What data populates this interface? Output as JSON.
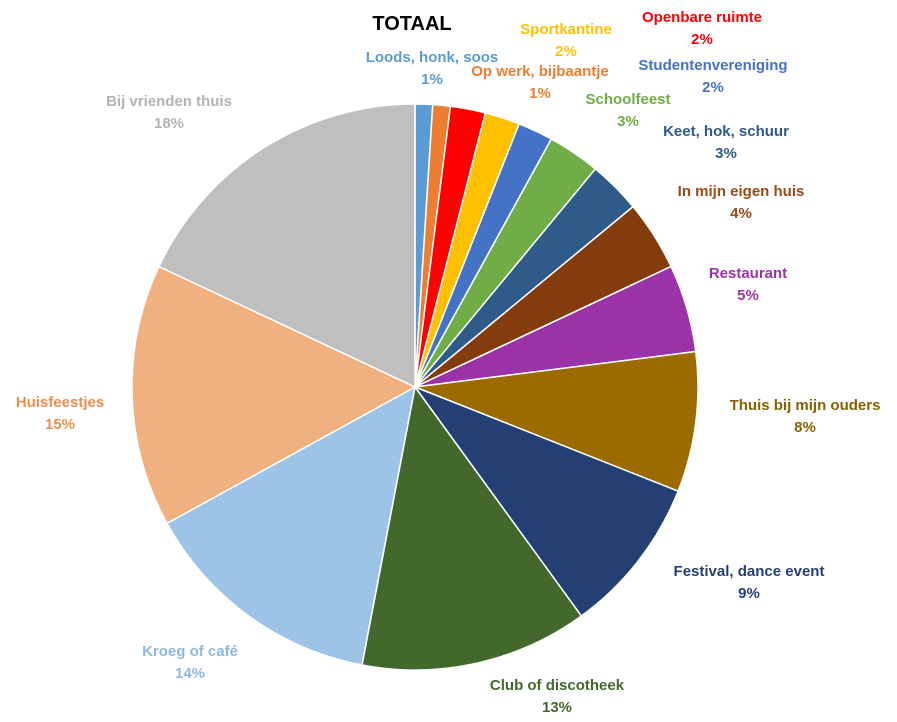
{
  "chart_data": {
    "type": "pie",
    "title": "TOTAAL",
    "start_angle_deg": 0,
    "direction": "clockwise",
    "legend": "none",
    "slices": [
      {
        "label": "Loods, honk, soos",
        "value": 1,
        "value_label": "1%",
        "color": "#5b9bd5",
        "label_color": "#5b9bd5"
      },
      {
        "label": "Op werk, bijbaantje",
        "value": 1,
        "value_label": "1%",
        "color": "#ed7d31",
        "label_color": "#ed7d31"
      },
      {
        "label": "Openbare ruimte",
        "value": 2,
        "value_label": "2%",
        "color": "#ff0000",
        "label_color": "#ff0000"
      },
      {
        "label": "Sportkantine",
        "value": 2,
        "value_label": "2%",
        "color": "#ffc000",
        "label_color": "#ffc000"
      },
      {
        "label": "Studentenvereniging",
        "value": 2,
        "value_label": "2%",
        "color": "#4472c4",
        "label_color": "#4472c4"
      },
      {
        "label": "Schoolfeest",
        "value": 3,
        "value_label": "3%",
        "color": "#70ad47",
        "label_color": "#70ad47"
      },
      {
        "label": "Keet, hok, schuur",
        "value": 3,
        "value_label": "3%",
        "color": "#2e5b8a",
        "label_color": "#2e5b8a"
      },
      {
        "label": "In mijn eigen huis",
        "value": 4,
        "value_label": "4%",
        "color": "#843c0c",
        "label_color": "#9c4a15"
      },
      {
        "label": "Restaurant",
        "value": 5,
        "value_label": "5%",
        "color": "#9a32a8",
        "label_color": "#9a32a8"
      },
      {
        "label": "Thuis bij mijn ouders",
        "value": 8,
        "value_label": "8%",
        "color": "#9c6b00",
        "label_color": "#8a6000"
      },
      {
        "label": "Festival, dance event",
        "value": 9,
        "value_label": "9%",
        "color": "#243f73",
        "label_color": "#243f73"
      },
      {
        "label": "Club of discotheek",
        "value": 13,
        "value_label": "13%",
        "color": "#43682b",
        "label_color": "#43682b"
      },
      {
        "label": "Kroeg of café",
        "value": 14,
        "value_label": "14%",
        "color": "#9dc3e6",
        "label_color": "#8fb8e0"
      },
      {
        "label": "Huisfeestjes",
        "value": 15,
        "value_label": "15%",
        "color": "#f0b07f",
        "label_color": "#ed8f4c"
      },
      {
        "label": "Bij vrienden thuis",
        "value": 18,
        "value_label": "18%",
        "color": "#bfbfbf",
        "label_color": "#b3b3b3"
      }
    ]
  }
}
